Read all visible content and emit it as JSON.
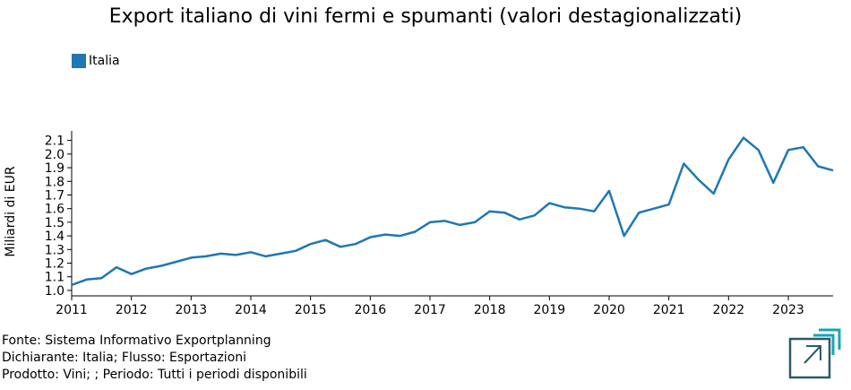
{
  "chart_data": {
    "type": "line",
    "title": "Export italiano di vini fermi e spumanti (valori destagionalizzati)",
    "xlabel": "",
    "ylabel": "Miliardi di EUR",
    "xlim": [
      2011.0,
      2023.75
    ],
    "ylim": [
      0.96,
      2.17
    ],
    "x_ticks": [
      "2011",
      "2012",
      "2013",
      "2014",
      "2015",
      "2016",
      "2017",
      "2018",
      "2019",
      "2020",
      "2021",
      "2022",
      "2023"
    ],
    "y_ticks": [
      "1.0",
      "1.1",
      "1.2",
      "1.3",
      "1.4",
      "1.5",
      "1.6",
      "1.7",
      "1.8",
      "1.9",
      "2.0",
      "2.1"
    ],
    "legend_position": "top-left",
    "grid": false,
    "series": [
      {
        "name": "Italia",
        "color": "#1f77b4",
        "x": [
          2011.0,
          2011.25,
          2011.5,
          2011.75,
          2012.0,
          2012.25,
          2012.5,
          2012.75,
          2013.0,
          2013.25,
          2013.5,
          2013.75,
          2014.0,
          2014.25,
          2014.5,
          2014.75,
          2015.0,
          2015.25,
          2015.5,
          2015.75,
          2016.0,
          2016.25,
          2016.5,
          2016.75,
          2017.0,
          2017.25,
          2017.5,
          2017.75,
          2018.0,
          2018.25,
          2018.5,
          2018.75,
          2019.0,
          2019.25,
          2019.5,
          2019.75,
          2020.0,
          2020.25,
          2020.5,
          2020.75,
          2021.0,
          2021.25,
          2021.5,
          2021.75,
          2022.0,
          2022.25,
          2022.5,
          2022.75,
          2023.0,
          2023.25,
          2023.5,
          2023.75
        ],
        "values": [
          1.04,
          1.08,
          1.09,
          1.17,
          1.12,
          1.16,
          1.18,
          1.21,
          1.24,
          1.25,
          1.27,
          1.26,
          1.28,
          1.25,
          1.27,
          1.29,
          1.34,
          1.37,
          1.32,
          1.34,
          1.39,
          1.41,
          1.4,
          1.43,
          1.5,
          1.51,
          1.48,
          1.5,
          1.58,
          1.57,
          1.52,
          1.55,
          1.64,
          1.61,
          1.6,
          1.58,
          1.73,
          1.4,
          1.57,
          1.6,
          1.63,
          1.93,
          1.81,
          1.71,
          1.96,
          2.12,
          2.03,
          1.79,
          2.03,
          2.05,
          1.91,
          1.88
        ]
      }
    ]
  },
  "footer": {
    "line1": "Fonte: Sistema Informativo Exportplanning",
    "line2": "Dichiarante: Italia; Flusso: Esportazioni",
    "line3": "Prodotto: Vini; ; Periodo: Tutti i periodi disponibili"
  },
  "logo": {
    "icon": "exportplanning-logo-icon",
    "colors": [
      "#2a5a6a",
      "#18a4b3"
    ]
  }
}
